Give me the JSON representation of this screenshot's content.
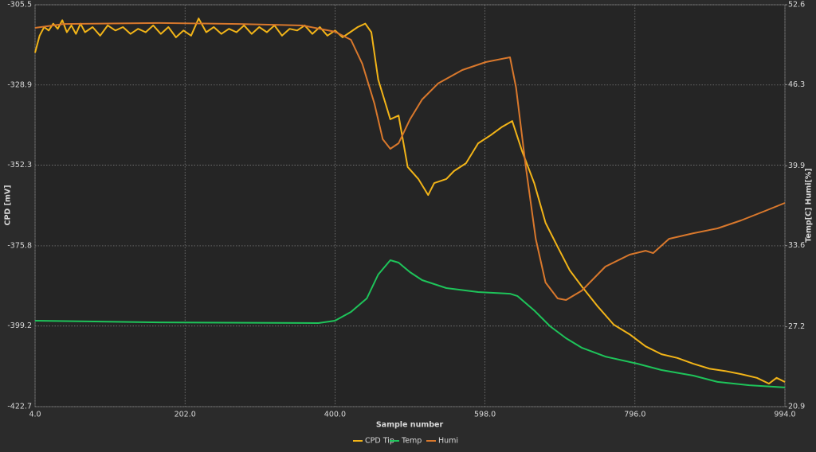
{
  "chart_data": {
    "type": "line",
    "xlabel": "Sample number",
    "ylabel": "CPD [mV]",
    "y2label": "Temp[C] Humi[%]",
    "xlim": [
      4,
      994
    ],
    "xticks": [
      {
        "value": 4,
        "label": "4.0"
      },
      {
        "value": 202,
        "label": "202.0"
      },
      {
        "value": 400,
        "label": "400.0"
      },
      {
        "value": 598,
        "label": "598.0"
      },
      {
        "value": 796,
        "label": "796.0"
      },
      {
        "value": 994,
        "label": "994.0"
      }
    ],
    "ylim": [
      -422.7,
      -305.5
    ],
    "yticks": [
      -305.5,
      -328.9,
      -352.3,
      -375.8,
      -399.2,
      -422.7
    ],
    "y2lim": [
      20.9,
      52.6
    ],
    "y2ticks": [
      20.9,
      27.2,
      33.6,
      39.9,
      46.3,
      52.6
    ],
    "grid": true,
    "legend": "bottom",
    "series": [
      {
        "name": "CPD Tip",
        "color": "#f2b418",
        "x": [
          4,
          10,
          16,
          22,
          28,
          34,
          40,
          46,
          52,
          58,
          64,
          70,
          80,
          90,
          100,
          110,
          120,
          130,
          140,
          150,
          160,
          170,
          180,
          190,
          200,
          210,
          220,
          230,
          240,
          250,
          260,
          270,
          280,
          290,
          300,
          310,
          320,
          330,
          340,
          350,
          360,
          370,
          380,
          390,
          400,
          410,
          420,
          430,
          440,
          448,
          457,
          473,
          484,
          496,
          510,
          523,
          531,
          547,
          557,
          573,
          589,
          605,
          620,
          634,
          647,
          663,
          678,
          694,
          710,
          726,
          747,
          768,
          789,
          810,
          831,
          852,
          873,
          894,
          915,
          936,
          957,
          973,
          983,
          994
        ],
        "values": [
          -319.5,
          -314.5,
          -312.0,
          -313.0,
          -311.0,
          -312.5,
          -310.0,
          -313.5,
          -311.5,
          -314.0,
          -311.0,
          -313.5,
          -312.0,
          -314.5,
          -311.5,
          -313.0,
          -312.0,
          -314.0,
          -312.5,
          -313.5,
          -311.5,
          -314.0,
          -312.0,
          -315.0,
          -313.0,
          -314.5,
          -309.5,
          -313.5,
          -312.0,
          -314.0,
          -312.5,
          -313.5,
          -311.5,
          -314.0,
          -312.0,
          -313.5,
          -311.5,
          -314.5,
          -312.5,
          -313.0,
          -311.5,
          -314.0,
          -312.0,
          -314.5,
          -313.0,
          -315.0,
          -313.5,
          -312.0,
          -311.0,
          -313.5,
          -327.3,
          -338.9,
          -337.8,
          -352.8,
          -356.3,
          -361.0,
          -357.5,
          -356.3,
          -354.0,
          -351.7,
          -345.9,
          -343.6,
          -341.2,
          -339.4,
          -348.2,
          -357.5,
          -369.1,
          -376.1,
          -383.0,
          -387.7,
          -393.5,
          -398.8,
          -401.6,
          -405.1,
          -407.4,
          -408.5,
          -410.2,
          -411.6,
          -412.3,
          -413.2,
          -414.3,
          -416.0,
          -414.3,
          -415.5
        ]
      },
      {
        "name": "Temp",
        "color": "#1ec45a",
        "axis": "y2",
        "x": [
          4,
          168,
          378,
          400,
          421,
          442,
          457,
          473,
          484,
          499,
          515,
          547,
          589,
          631,
          641,
          663,
          684,
          705,
          726,
          757,
          799,
          831,
          873,
          905,
          947,
          994
        ],
        "values": [
          27.68,
          27.55,
          27.49,
          27.68,
          28.37,
          29.44,
          31.32,
          32.45,
          32.26,
          31.51,
          30.88,
          30.25,
          29.94,
          29.81,
          29.62,
          28.49,
          27.24,
          26.3,
          25.54,
          24.85,
          24.29,
          23.79,
          23.35,
          22.85,
          22.59,
          22.41
        ]
      },
      {
        "name": "Humi",
        "color": "#d9782c",
        "axis": "y2",
        "x": [
          4,
          42,
          168,
          273,
          357,
          400,
          421,
          436,
          452,
          463,
          473,
          484,
          499,
          515,
          536,
          568,
          599,
          631,
          639,
          652,
          665,
          678,
          694,
          705,
          726,
          757,
          789,
          810,
          820,
          841,
          873,
          905,
          936,
          968,
          994
        ],
        "values": [
          50.78,
          51.09,
          51.16,
          51.09,
          50.97,
          50.47,
          49.84,
          47.95,
          44.82,
          42.0,
          41.24,
          41.68,
          43.56,
          45.13,
          46.39,
          47.45,
          48.08,
          48.46,
          46.07,
          39.79,
          34.14,
          30.69,
          29.44,
          29.31,
          30.06,
          31.95,
          32.89,
          33.2,
          33.01,
          34.14,
          34.58,
          34.96,
          35.59,
          36.34,
          36.97
        ]
      }
    ]
  }
}
